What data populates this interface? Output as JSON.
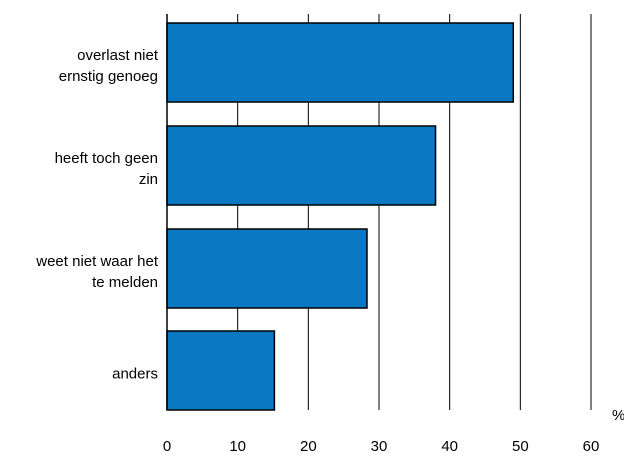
{
  "chart_data": {
    "type": "bar",
    "orientation": "horizontal",
    "categories": [
      [
        "overlast niet",
        "ernstig genoeg"
      ],
      [
        "heeft toch geen",
        "zin"
      ],
      [
        "weet niet waar het",
        "te melden"
      ],
      [
        "anders"
      ]
    ],
    "values": [
      49,
      38,
      28.3,
      15.2
    ],
    "xlim": [
      0,
      60
    ],
    "xticks": [
      "0",
      "10",
      "20",
      "30",
      "40",
      "50",
      "60"
    ],
    "x_unit": "%",
    "grid": "vertical",
    "bar_color": "#0b78c4",
    "bar_edge_color": "#000000"
  }
}
